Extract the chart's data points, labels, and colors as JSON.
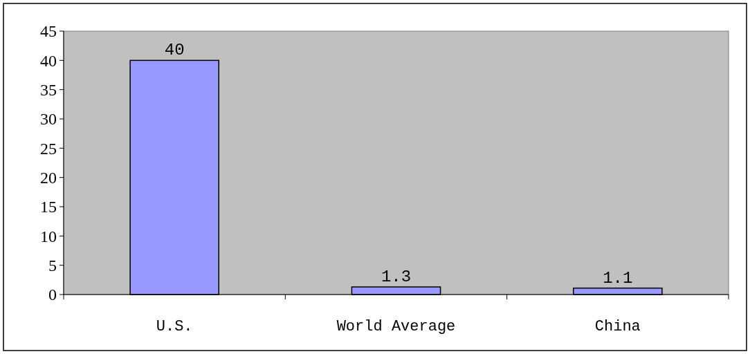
{
  "chart_data": {
    "type": "bar",
    "categories": [
      "U.S.",
      "World Average",
      "China"
    ],
    "values": [
      40,
      1.3,
      1.1
    ],
    "color": "#9999ff",
    "ylim": [
      0,
      45
    ],
    "yticks": [
      0,
      5,
      10,
      15,
      20,
      25,
      30,
      35,
      40,
      45
    ],
    "data_labels": true
  }
}
